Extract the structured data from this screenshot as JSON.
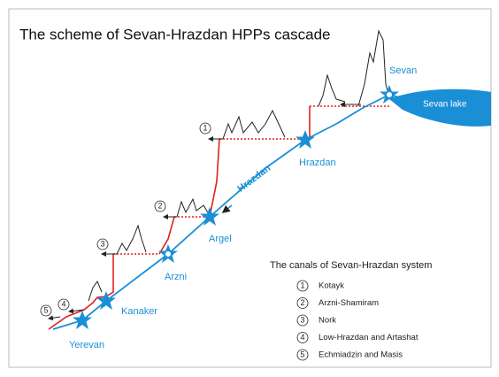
{
  "title": "The scheme of Sevan-Hrazdan HPPs cascade",
  "stations": [
    {
      "label": "Sevan"
    },
    {
      "label": "Hrazdan"
    },
    {
      "label": "Argel"
    },
    {
      "label": "Arzni"
    },
    {
      "label": "Kanaker"
    },
    {
      "label": "Yerevan"
    }
  ],
  "river": "Hrazdan",
  "lake": "Sevan lake",
  "legend": {
    "title": "The canals of Sevan-Hrazdan system",
    "items": [
      {
        "number": "1",
        "label": "Kotayk"
      },
      {
        "number": "2",
        "label": "Arzni-Shamiram"
      },
      {
        "number": "3",
        "label": "Nork"
      },
      {
        "number": "4",
        "label": "Low-Hrazdan and Artashat"
      },
      {
        "number": "5",
        "label": "Echmiadzin and Masis"
      }
    ]
  }
}
